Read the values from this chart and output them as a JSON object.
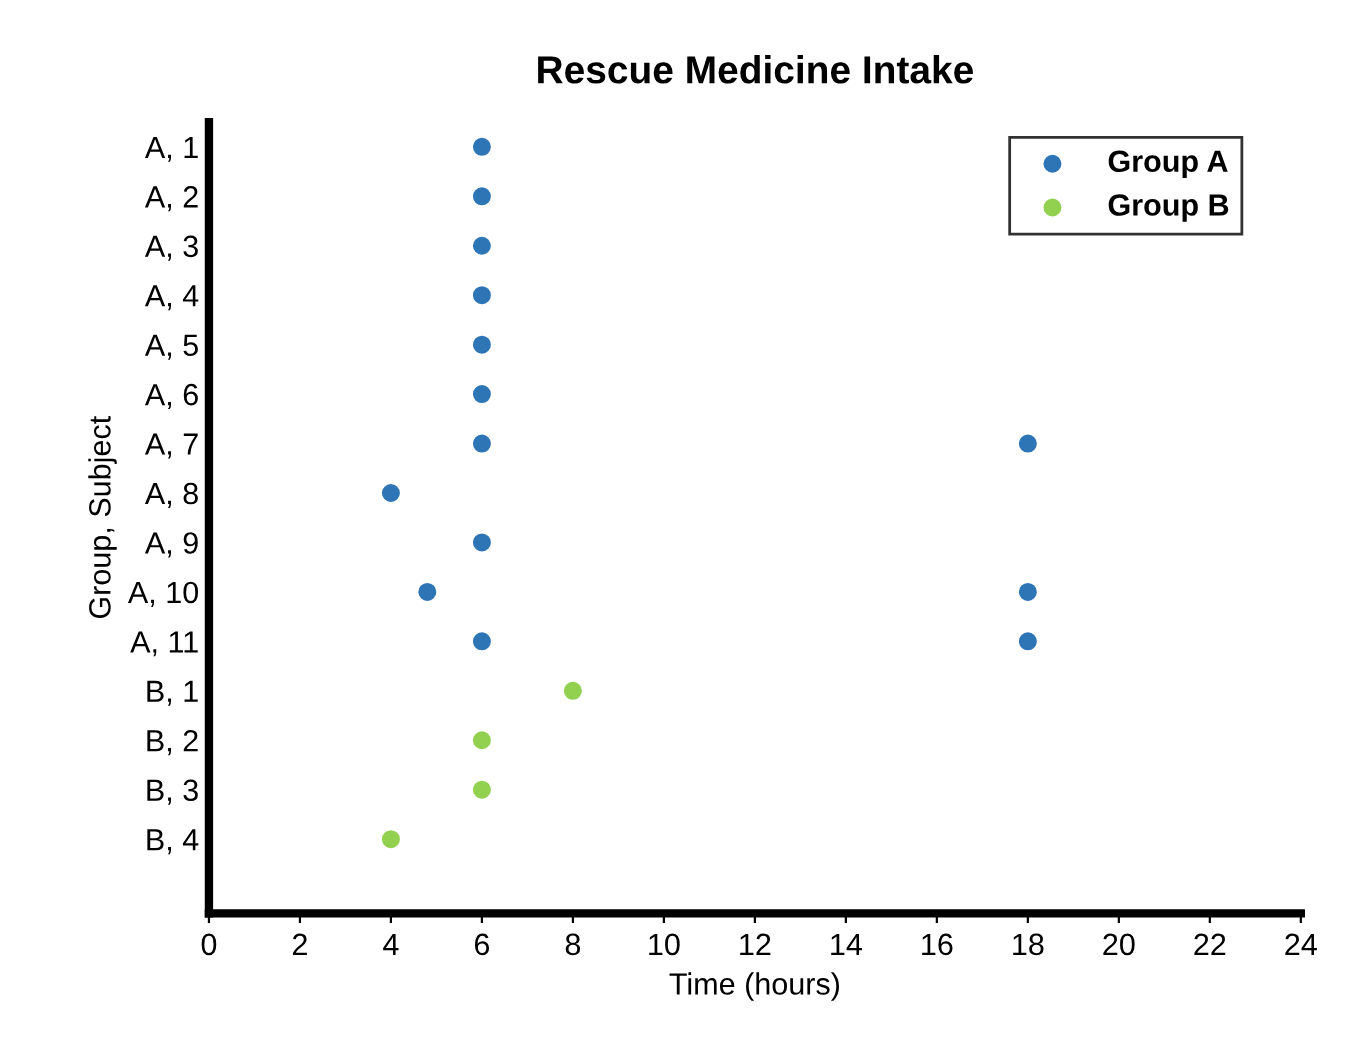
{
  "chart_data": {
    "type": "scatter",
    "orientation": "horizontal",
    "title": "Rescue Medicine Intake",
    "xlabel": "Time (hours)",
    "ylabel": "Group, Subject",
    "categories": [
      "A, 1",
      "A, 2",
      "A, 3",
      "A, 4",
      "A, 5",
      "A, 6",
      "A, 7",
      "A, 8",
      "A, 9",
      "A, 10",
      "A, 11",
      "B, 1",
      "B, 2",
      "B, 3",
      "B, 4",
      null
    ],
    "series": [
      {
        "name": "Group A",
        "color": "#2e75b6",
        "values": [
          6,
          6,
          6,
          6,
          6,
          6,
          6,
          4,
          6,
          4.8,
          6,
          null,
          null,
          null,
          null,
          null
        ]
      },
      {
        "color": "#2e75b6",
        "values": [
          null,
          null,
          null,
          null,
          null,
          null,
          18,
          null,
          null,
          18,
          18,
          null,
          null,
          null,
          null,
          null
        ]
      },
      {
        "name": "Group B",
        "color": "#92d050",
        "values": [
          null,
          null,
          null,
          null,
          null,
          null,
          null,
          null,
          null,
          null,
          null,
          8,
          6,
          6,
          4,
          null
        ]
      }
    ],
    "xlim": [
      0,
      24
    ],
    "xticks": [
      0,
      2,
      4,
      6,
      8,
      10,
      12,
      14,
      16,
      18,
      20,
      22,
      24
    ],
    "marker": "circle",
    "legend": "top right",
    "grid": false
  }
}
